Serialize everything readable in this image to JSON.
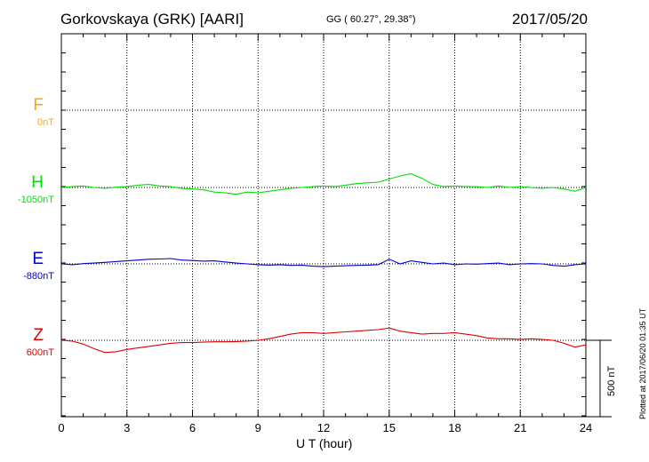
{
  "header": {
    "station": "Gorkovskaya (GRK)  [AARI]",
    "coords": "GG ( 60.27°,  29.38°)",
    "date": "2017/05/20"
  },
  "footer": {
    "plotted": "Plotted at 2017/06/20 01:35 UT"
  },
  "chart_data": {
    "type": "line",
    "title": "Gorkovskaya (GRK)  [AARI]",
    "xlabel": "U T (hour)",
    "ylabel": "",
    "xlim": [
      0,
      24
    ],
    "xticks": [
      0,
      3,
      6,
      9,
      12,
      15,
      18,
      21,
      24
    ],
    "grid": true,
    "scale_bar": {
      "label": "500 nT",
      "value_nT": 500
    },
    "channel_spacing_nT": 500,
    "series": [
      {
        "name": "F",
        "baseline_label": "0nT",
        "baseline_nT": 0,
        "color": "#ffa500",
        "values": []
      },
      {
        "name": "H",
        "baseline_label": "-1050nT",
        "baseline_nT": -1050,
        "color": "#00e000",
        "x": [
          0,
          0.5,
          1,
          1.5,
          2,
          2.5,
          3,
          3.5,
          4,
          4.5,
          5,
          5.5,
          6,
          6.5,
          7,
          7.5,
          8,
          8.5,
          9,
          9.5,
          10,
          10.5,
          11,
          11.5,
          12,
          12.5,
          13,
          13.5,
          14,
          14.5,
          15,
          15.5,
          16,
          16.5,
          17,
          17.5,
          18,
          18.5,
          19,
          19.5,
          20,
          20.5,
          21,
          21.5,
          22,
          22.5,
          23,
          23.5,
          24
        ],
        "values": [
          -1050,
          -1045,
          -1040,
          -1050,
          -1055,
          -1048,
          -1045,
          -1035,
          -1030,
          -1040,
          -1045,
          -1055,
          -1060,
          -1065,
          -1080,
          -1085,
          -1095,
          -1080,
          -1085,
          -1075,
          -1065,
          -1055,
          -1050,
          -1045,
          -1040,
          -1045,
          -1035,
          -1025,
          -1020,
          -1015,
          -995,
          -975,
          -960,
          -990,
          -1030,
          -1045,
          -1040,
          -1045,
          -1045,
          -1050,
          -1040,
          -1050,
          -1045,
          -1050,
          -1055,
          -1050,
          -1060,
          -1075,
          -1050
        ]
      },
      {
        "name": "E",
        "baseline_label": "-880nT",
        "baseline_nT": -880,
        "color": "#0000d0",
        "x": [
          0,
          0.5,
          1,
          1.5,
          2,
          2.5,
          3,
          3.5,
          4,
          4.5,
          5,
          5.5,
          6,
          6.5,
          7,
          7.5,
          8,
          8.5,
          9,
          9.5,
          10,
          10.5,
          11,
          11.5,
          12,
          12.5,
          13,
          13.5,
          14,
          14.5,
          15,
          15.5,
          16,
          16.5,
          17,
          17.5,
          18,
          18.5,
          19,
          19.5,
          20,
          20.5,
          21,
          21.5,
          22,
          22.5,
          23,
          23.5,
          24
        ],
        "values": [
          -880,
          -885,
          -878,
          -875,
          -870,
          -865,
          -860,
          -855,
          -850,
          -848,
          -845,
          -855,
          -858,
          -862,
          -860,
          -868,
          -875,
          -880,
          -885,
          -888,
          -885,
          -890,
          -888,
          -895,
          -898,
          -895,
          -892,
          -890,
          -888,
          -885,
          -850,
          -880,
          -860,
          -870,
          -880,
          -875,
          -885,
          -880,
          -882,
          -878,
          -875,
          -885,
          -880,
          -878,
          -880,
          -890,
          -895,
          -885,
          -880
        ]
      },
      {
        "name": "Z",
        "baseline_label": "600nT",
        "baseline_nT": 600,
        "color": "#e00000",
        "x": [
          0,
          0.5,
          1,
          1.5,
          2,
          2.5,
          3,
          3.5,
          4,
          4.5,
          5,
          5.5,
          6,
          6.5,
          7,
          7.5,
          8,
          8.5,
          9,
          9.5,
          10,
          10.5,
          11,
          11.5,
          12,
          12.5,
          13,
          13.5,
          14,
          14.5,
          15,
          15.5,
          16,
          16.5,
          17,
          17.5,
          18,
          18.5,
          19,
          19.5,
          20,
          20.5,
          21,
          21.5,
          22,
          22.5,
          23,
          23.5,
          24
        ],
        "values": [
          600,
          595,
          575,
          545,
          520,
          525,
          540,
          550,
          560,
          570,
          580,
          585,
          585,
          588,
          590,
          590,
          592,
          595,
          600,
          610,
          625,
          640,
          650,
          650,
          645,
          650,
          655,
          660,
          665,
          670,
          680,
          660,
          650,
          640,
          645,
          645,
          650,
          640,
          630,
          615,
          610,
          610,
          605,
          610,
          605,
          600,
          580,
          555,
          570
        ]
      }
    ]
  }
}
